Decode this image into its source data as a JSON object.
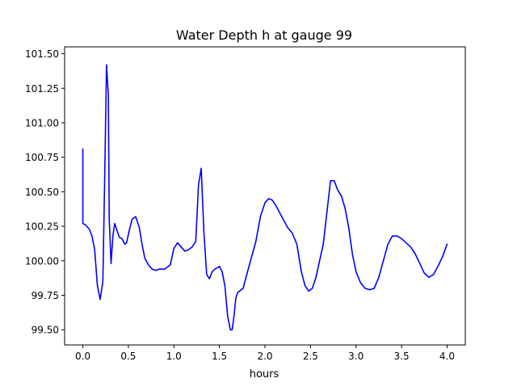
{
  "chart_data": {
    "type": "line",
    "title": "Water Depth h at gauge 99",
    "xlabel": "hours",
    "ylabel": "",
    "xlim": [
      -0.2,
      4.2
    ],
    "ylim": [
      99.39,
      101.55
    ],
    "xticks": [
      0.0,
      0.5,
      1.0,
      1.5,
      2.0,
      2.5,
      3.0,
      3.5,
      4.0
    ],
    "xtick_labels": [
      "0.0",
      "0.5",
      "1.0",
      "1.5",
      "2.0",
      "2.5",
      "3.0",
      "3.5",
      "4.0"
    ],
    "yticks": [
      99.5,
      99.75,
      100.0,
      100.25,
      100.5,
      100.75,
      101.0,
      101.25,
      101.5
    ],
    "ytick_labels": [
      "99.50",
      "99.75",
      "100.00",
      "100.25",
      "100.50",
      "100.75",
      "101.00",
      "101.25",
      "101.50"
    ],
    "grid": false,
    "series": [
      {
        "color": "#0000ff",
        "x": [
          0.0,
          0.0,
          0.03,
          0.07,
          0.1,
          0.13,
          0.16,
          0.19,
          0.22,
          0.24,
          0.26,
          0.28,
          0.29,
          0.31,
          0.33,
          0.35,
          0.37,
          0.4,
          0.43,
          0.46,
          0.48,
          0.51,
          0.54,
          0.58,
          0.62,
          0.65,
          0.68,
          0.72,
          0.76,
          0.8,
          0.84,
          0.9,
          0.96,
          1.0,
          1.04,
          1.08,
          1.12,
          1.16,
          1.2,
          1.24,
          1.27,
          1.3,
          1.33,
          1.36,
          1.39,
          1.42,
          1.45,
          1.48,
          1.5,
          1.53,
          1.56,
          1.59,
          1.62,
          1.64,
          1.66,
          1.68,
          1.7,
          1.72,
          1.76,
          1.8,
          1.85,
          1.9,
          1.95,
          2.0,
          2.04,
          2.08,
          2.12,
          2.16,
          2.2,
          2.25,
          2.3,
          2.35,
          2.4,
          2.44,
          2.48,
          2.52,
          2.56,
          2.6,
          2.64,
          2.68,
          2.72,
          2.76,
          2.8,
          2.84,
          2.88,
          2.92,
          2.96,
          3.0,
          3.05,
          3.1,
          3.15,
          3.2,
          3.25,
          3.3,
          3.35,
          3.4,
          3.45,
          3.5,
          3.55,
          3.6,
          3.65,
          3.7,
          3.75,
          3.8,
          3.85,
          3.9,
          3.95,
          4.0
        ],
        "y": [
          100.81,
          100.27,
          100.26,
          100.23,
          100.18,
          100.08,
          99.82,
          99.72,
          99.85,
          100.6,
          101.42,
          101.2,
          100.3,
          99.98,
          100.18,
          100.27,
          100.23,
          100.17,
          100.16,
          100.12,
          100.13,
          100.22,
          100.3,
          100.32,
          100.24,
          100.12,
          100.02,
          99.97,
          99.94,
          99.93,
          99.94,
          99.94,
          99.97,
          100.09,
          100.13,
          100.1,
          100.07,
          100.08,
          100.1,
          100.14,
          100.55,
          100.67,
          100.2,
          99.9,
          99.87,
          99.92,
          99.94,
          99.95,
          99.96,
          99.92,
          99.82,
          99.6,
          99.5,
          99.5,
          99.6,
          99.73,
          99.77,
          99.78,
          99.8,
          99.9,
          100.02,
          100.14,
          100.32,
          100.42,
          100.45,
          100.44,
          100.4,
          100.35,
          100.3,
          100.24,
          100.2,
          100.12,
          99.92,
          99.82,
          99.78,
          99.8,
          99.88,
          100.0,
          100.12,
          100.35,
          100.58,
          100.58,
          100.51,
          100.47,
          100.38,
          100.24,
          100.05,
          99.92,
          99.84,
          99.8,
          99.79,
          99.8,
          99.88,
          100.0,
          100.12,
          100.18,
          100.18,
          100.16,
          100.13,
          100.1,
          100.05,
          99.98,
          99.91,
          99.88,
          99.9,
          99.96,
          100.03,
          100.12
        ]
      }
    ]
  }
}
